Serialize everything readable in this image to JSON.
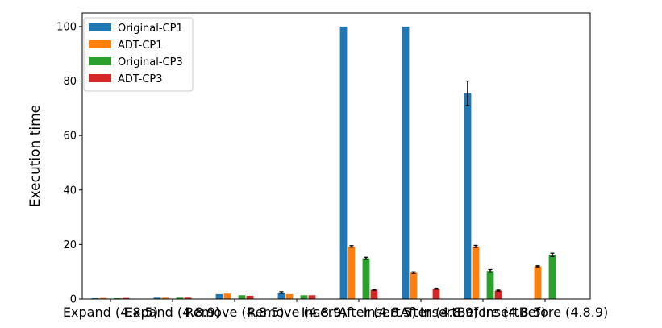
{
  "chart_data": {
    "type": "bar",
    "title": "",
    "xlabel": "",
    "ylabel": "Execution time",
    "ylim": [
      0,
      105
    ],
    "yticks": [
      0,
      20,
      40,
      60,
      80,
      100
    ],
    "grid": false,
    "legend_position": "top-left",
    "categories": [
      "Expand (4.8.5)",
      "Expand (4.8.9)",
      "Remove (4.8.5)",
      "Remove (4.8.9)",
      "InsertAfter (4.8.5)",
      "InsertAfter (4.8.9)",
      "InsertBefore (4.8.5)",
      "InsertBefore (4.8.9)"
    ],
    "series": [
      {
        "name": "Original-CP1",
        "color": "#1f77b4",
        "values": [
          0.3,
          0.5,
          1.8,
          2.4,
          100,
          100,
          75.5,
          0
        ],
        "errors": [
          0,
          0,
          0,
          0.3,
          0,
          0,
          4.5,
          0
        ]
      },
      {
        "name": "ADT-CP1",
        "color": "#ff7f0e",
        "values": [
          0.4,
          0.5,
          2.0,
          1.8,
          19.3,
          9.7,
          19.3,
          12.0
        ],
        "errors": [
          0,
          0,
          0,
          0,
          0.3,
          0.3,
          0.4,
          0.2
        ]
      },
      {
        "name": "Original-CP3",
        "color": "#2ca02c",
        "values": [
          0.3,
          0.5,
          1.4,
          1.4,
          14.9,
          0,
          10.3,
          16.2
        ],
        "errors": [
          0,
          0,
          0,
          0,
          0.4,
          0,
          0.5,
          0.6
        ]
      },
      {
        "name": "ADT-CP3",
        "color": "#d62728",
        "values": [
          0.4,
          0.5,
          1.2,
          1.4,
          3.4,
          3.8,
          3.1,
          0
        ],
        "errors": [
          0,
          0,
          0,
          0,
          0.2,
          0.2,
          0.2,
          0
        ]
      }
    ]
  }
}
